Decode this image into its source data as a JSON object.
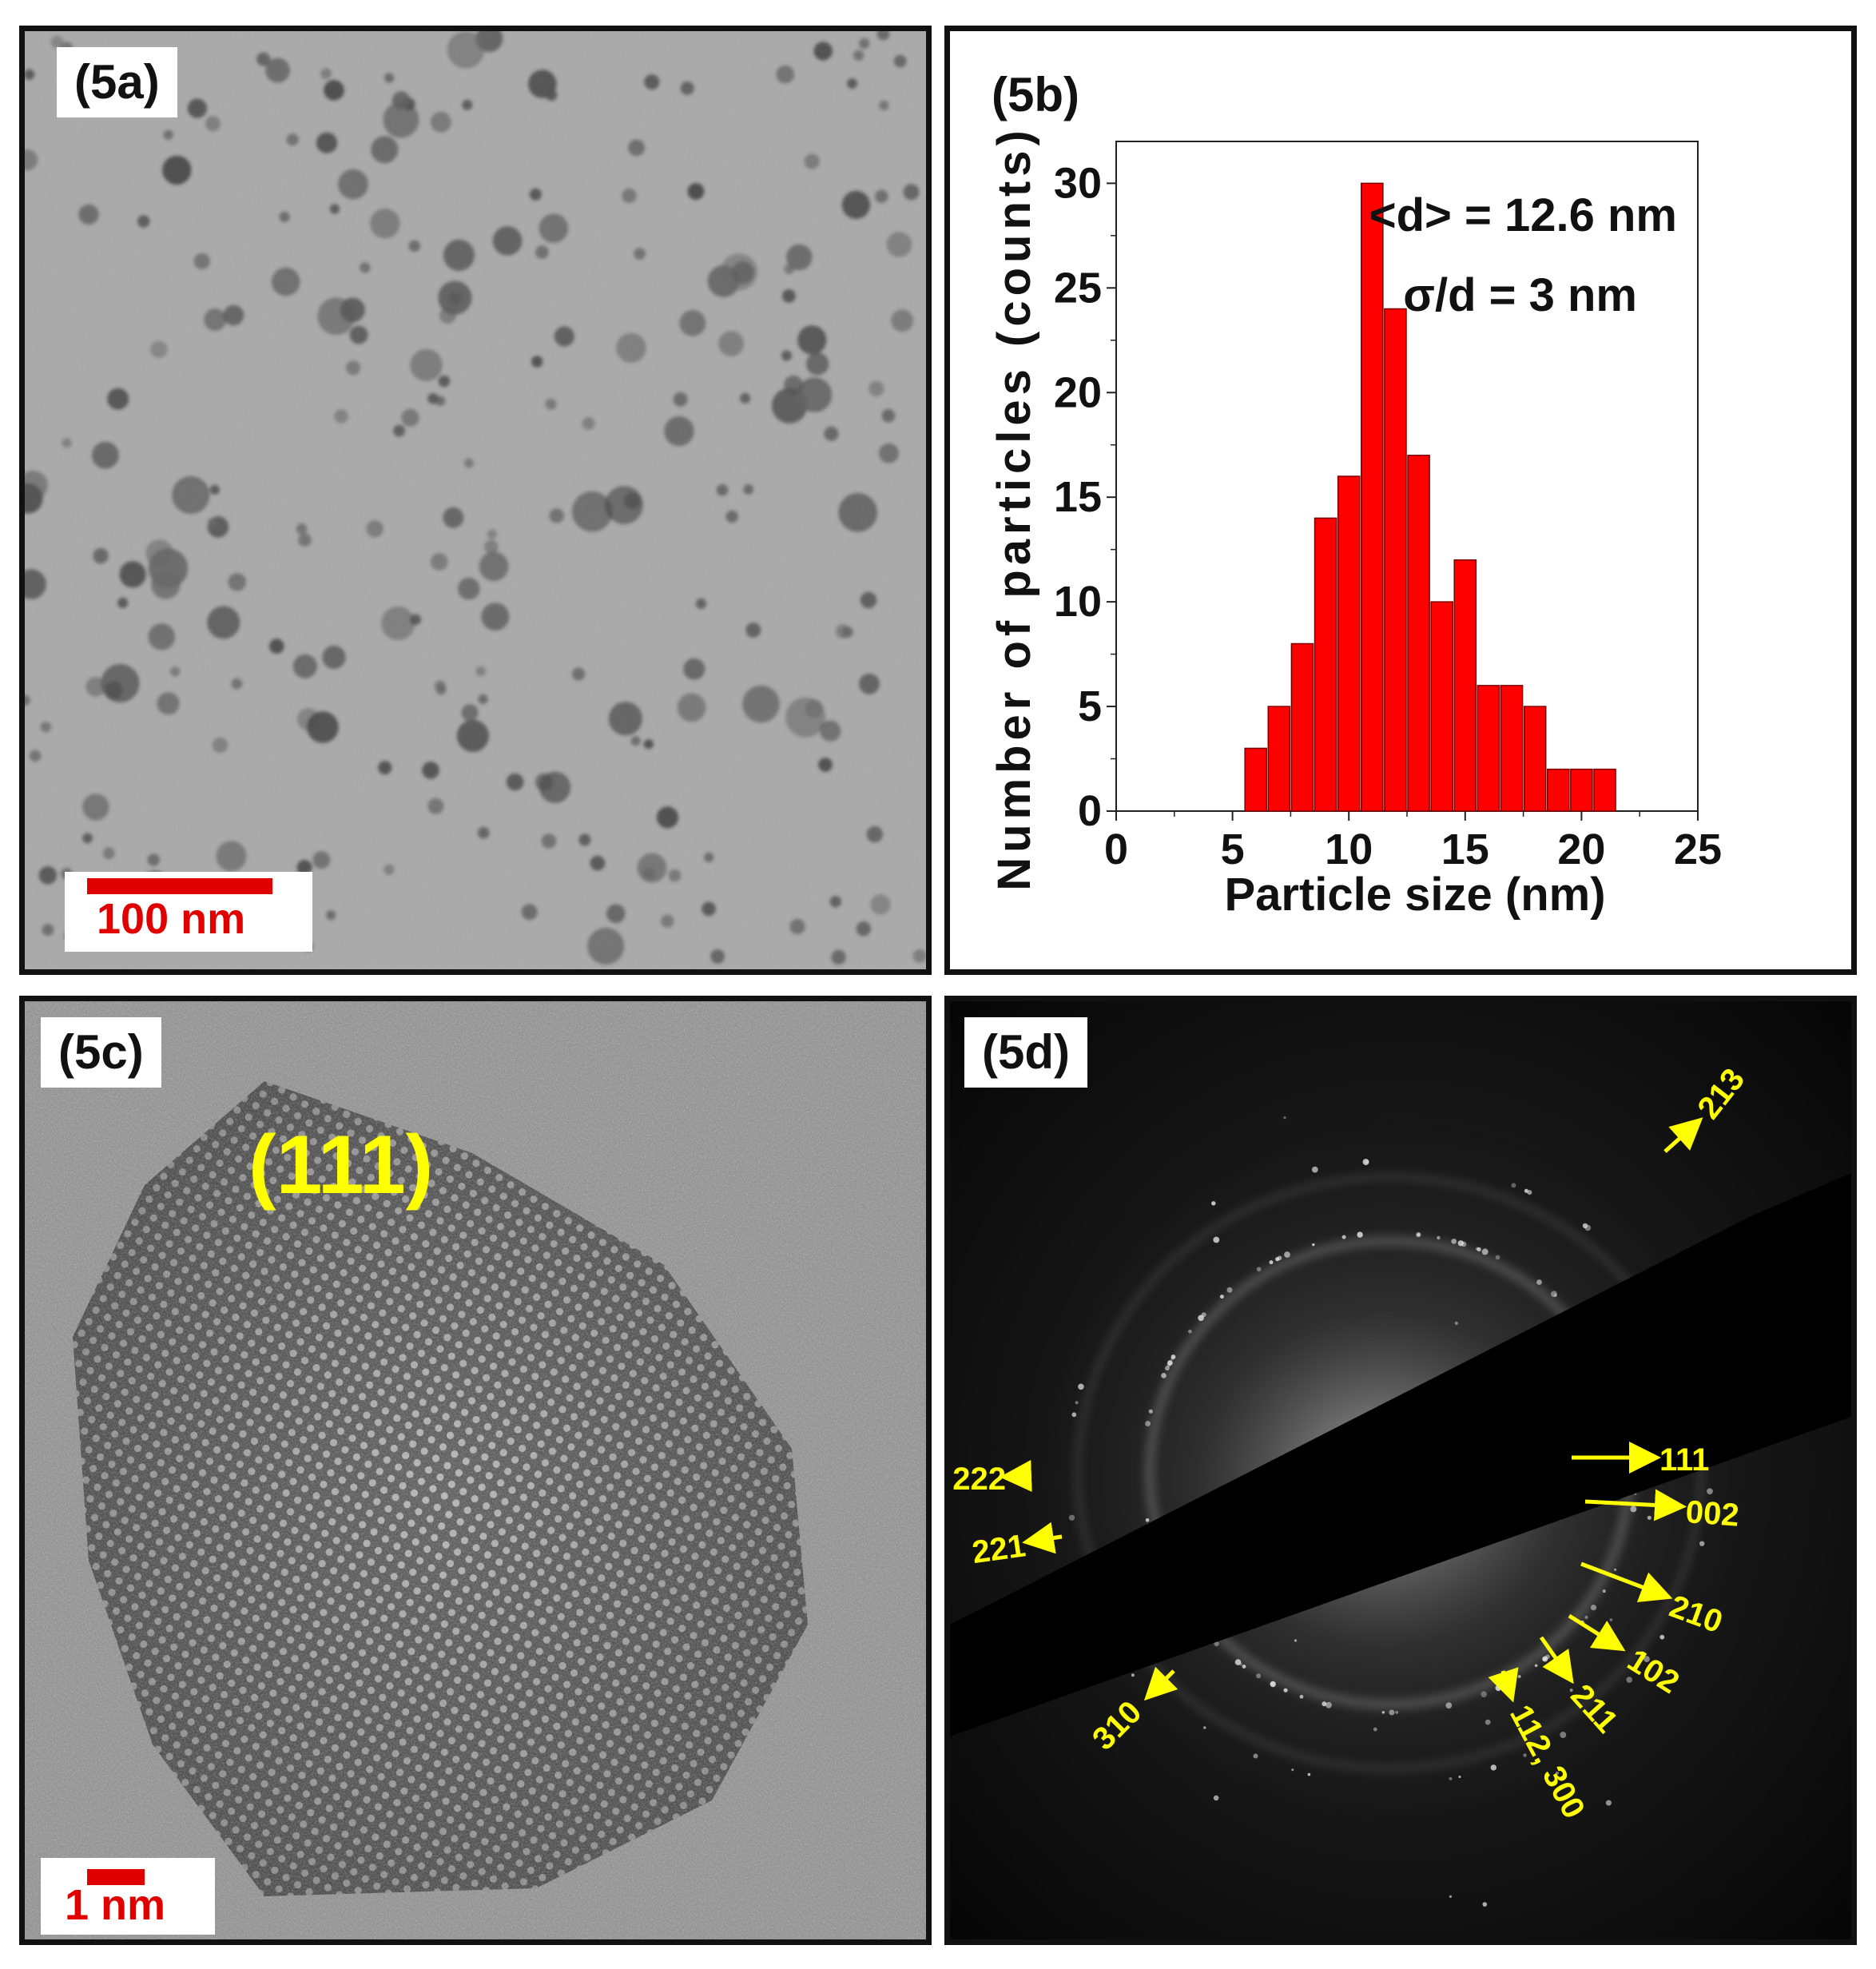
{
  "panels": {
    "a": {
      "label": "(5a)",
      "scale_bar": "100 nm"
    },
    "b": {
      "label": "(5b)"
    },
    "c": {
      "label": "(5c)",
      "plane": "(111)",
      "scale_bar": "1 nm"
    },
    "d": {
      "label": "(5d)",
      "reflections": [
        "213",
        "111",
        "002",
        "210",
        "102",
        "211",
        "112, 300",
        "310",
        "222",
        "221"
      ]
    }
  },
  "colors": {
    "bar_fill": "#ff0000",
    "scale_red": "#e00000",
    "annotation_yellow": "#ffff00"
  },
  "chart_data": {
    "type": "bar",
    "title": "",
    "xlabel": "Particle size (nm)",
    "ylabel": "Number of particles (counts)",
    "xlim": [
      0,
      25
    ],
    "ylim": [
      0,
      30
    ],
    "xticks": [
      0,
      5,
      10,
      15,
      20,
      25
    ],
    "yticks": [
      0,
      5,
      10,
      15,
      20,
      25,
      30
    ],
    "bin_width": 1,
    "x": [
      6,
      7,
      8,
      9,
      10,
      11,
      12,
      13,
      14,
      15,
      16,
      17,
      18,
      19,
      20,
      21
    ],
    "values": [
      3,
      5,
      8,
      14,
      16,
      30,
      24,
      17,
      10,
      12,
      6,
      6,
      5,
      2,
      2,
      2
    ],
    "annotations": [
      "<d> = 12.6 nm",
      "σ/d = 3 nm"
    ],
    "legend": "none",
    "grid": false
  }
}
